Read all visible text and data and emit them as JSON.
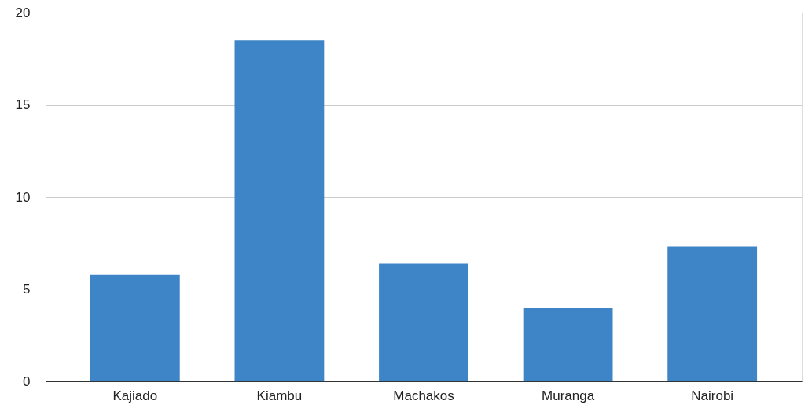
{
  "chart_data": {
    "type": "bar",
    "categories": [
      "Kajiado",
      "Kiambu",
      "Machakos",
      "Muranga",
      "Nairobi"
    ],
    "values": [
      5.8,
      18.5,
      6.4,
      4.0,
      7.3
    ],
    "color": "#3d85c6",
    "ylim": [
      0,
      20
    ],
    "yticks": [
      0,
      5,
      10,
      15,
      20
    ],
    "grid": "y"
  }
}
